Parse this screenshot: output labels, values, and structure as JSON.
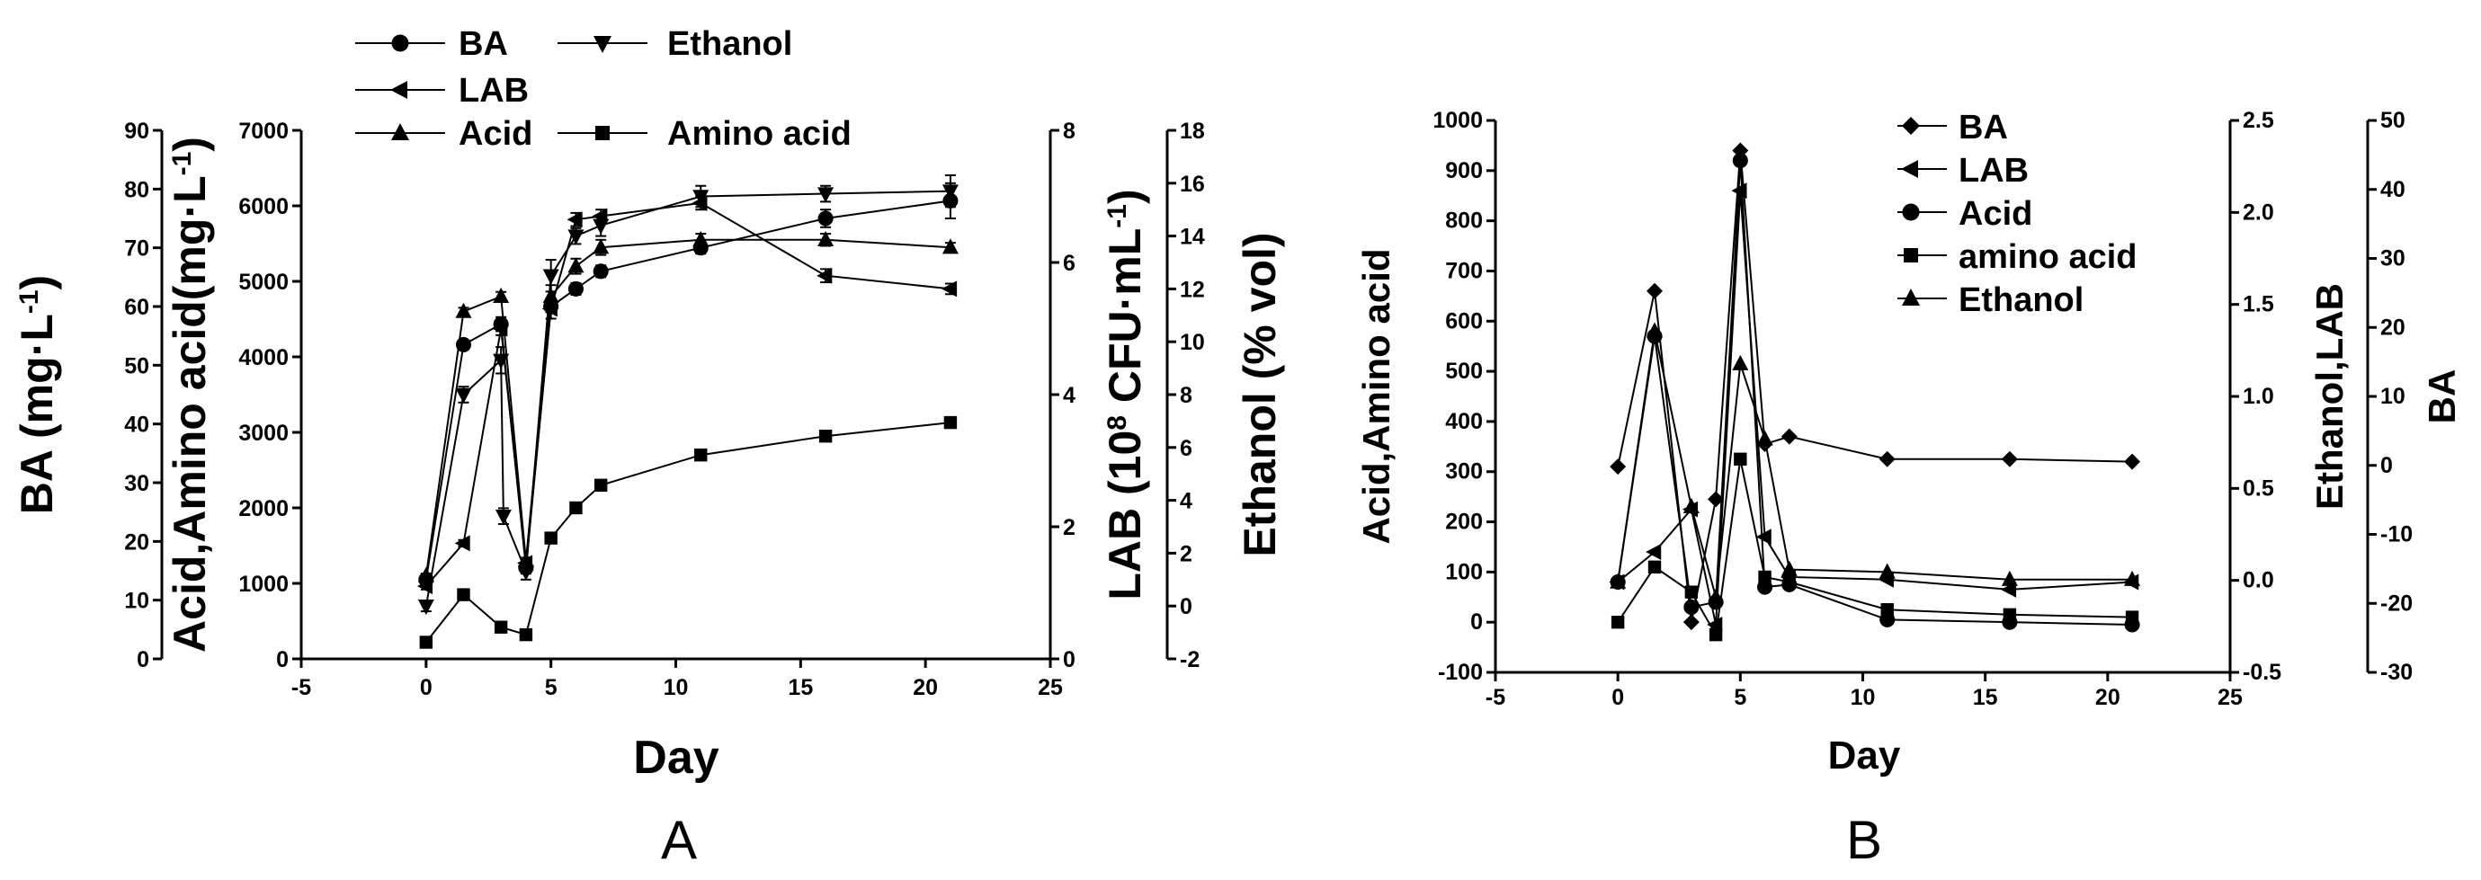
{
  "chart_data": [
    {
      "type": "line",
      "panel_label": "A",
      "xlabel": "Day",
      "x_ticks": [
        "-5",
        "0",
        "5",
        "10",
        "15",
        "20",
        "25"
      ],
      "xlim": [
        -5,
        25
      ],
      "axes": [
        {
          "id": "ba",
          "label": "BA (mg·L",
          "label_sup": "-1",
          "label_end": ")",
          "ylim": [
            0,
            90
          ],
          "ticks": [
            "0",
            "10",
            "20",
            "30",
            "40",
            "50",
            "60",
            "70",
            "80",
            "90"
          ]
        },
        {
          "id": "acid",
          "label": "Acid,Amino acid(mg·L",
          "label_sup": "-1",
          "label_end": ")",
          "ylim": [
            0,
            7000
          ],
          "ticks": [
            "0",
            "1000",
            "2000",
            "3000",
            "4000",
            "5000",
            "6000",
            "7000"
          ]
        },
        {
          "id": "lab",
          "label": "LAB (10",
          "label_sup": "8",
          "label_mid": " CFU·mL",
          "label_sup2": "-1",
          "label_end": ")",
          "ylim": [
            0,
            8
          ],
          "ticks": [
            "0",
            "2",
            "4",
            "6",
            "8"
          ]
        },
        {
          "id": "eth",
          "label": "Ethanol (% vol)",
          "ylim": [
            -2,
            18
          ],
          "ticks": [
            "-2",
            "0",
            "2",
            "4",
            "6",
            "8",
            "10",
            "12",
            "14",
            "16",
            "18"
          ]
        }
      ],
      "legend": {
        "placement": "top",
        "entries": [
          {
            "name": "BA",
            "marker": "circle"
          },
          {
            "name": "Ethanol",
            "marker": "triangle-down"
          },
          {
            "name": "LAB",
            "marker": "triangle-left"
          },
          {
            "name": "Acid",
            "marker": "triangle-up"
          },
          {
            "name": "Amino acid",
            "marker": "square"
          }
        ]
      },
      "series": [
        {
          "name": "BA",
          "axis": "ba",
          "marker": "circle",
          "x": [
            0,
            1.5,
            3,
            4,
            5,
            6,
            7,
            11,
            16,
            21
          ],
          "y": [
            13.5,
            53.5,
            57,
            15.5,
            60,
            63,
            66,
            70,
            75,
            78
          ],
          "err": [
            0.5,
            0.8,
            1.2,
            1,
            1,
            1,
            1,
            1,
            1.5,
            3
          ]
        },
        {
          "name": "Ethanol",
          "axis": "eth",
          "marker": "triangle-down",
          "x": [
            0,
            1.5,
            3,
            3.1,
            4,
            5,
            6,
            7,
            11,
            16,
            21
          ],
          "y": [
            0,
            8,
            9.3,
            3.4,
            1.3,
            12.5,
            14,
            14.4,
            15.5,
            15.6,
            15.7
          ],
          "err": [
            0.2,
            0.3,
            0.5,
            0.3,
            0.3,
            0.6,
            0.3,
            0.4,
            0.4,
            0.3,
            0.6
          ]
        },
        {
          "name": "LAB",
          "axis": "lab",
          "marker": "triangle-left",
          "x": [
            0,
            1.5,
            3,
            4,
            5,
            6,
            7,
            11,
            16,
            21
          ],
          "y": [
            1.1,
            1.75,
            5.0,
            1.45,
            5.3,
            6.65,
            6.7,
            6.9,
            5.8,
            5.6
          ],
          "err": [
            0.05,
            0.05,
            0.1,
            0.05,
            0.15,
            0.1,
            0.1,
            0.1,
            0.1,
            0.08
          ]
        },
        {
          "name": "Acid",
          "axis": "acid",
          "marker": "triangle-up",
          "x": [
            0,
            1.5,
            3,
            4,
            5,
            6,
            7,
            11,
            16,
            21
          ],
          "y": [
            1100,
            4600,
            4800,
            1300,
            4800,
            5200,
            5450,
            5550,
            5550,
            5450
          ],
          "err": [
            30,
            50,
            60,
            40,
            150,
            100,
            100,
            80,
            80,
            60
          ]
        },
        {
          "name": "Amino acid",
          "axis": "acid",
          "marker": "square",
          "x": [
            0,
            1.5,
            3,
            4,
            5,
            6,
            7,
            11,
            16,
            21
          ],
          "y": [
            220,
            850,
            420,
            320,
            1600,
            2000,
            2300,
            2700,
            2950,
            3130
          ],
          "err": [
            0,
            0,
            0,
            0,
            0,
            0,
            0,
            0,
            0,
            0
          ]
        }
      ]
    },
    {
      "type": "line",
      "panel_label": "B",
      "xlabel": "Day",
      "x_ticks": [
        "-5",
        "0",
        "5",
        "10",
        "15",
        "20",
        "25"
      ],
      "xlim": [
        -5,
        25
      ],
      "axes": [
        {
          "id": "acid",
          "label": "Acid,Amino acid",
          "ylim": [
            -100,
            1000
          ],
          "ticks": [
            "-100",
            "0",
            "100",
            "200",
            "300",
            "400",
            "500",
            "600",
            "700",
            "800",
            "900",
            "1000"
          ]
        },
        {
          "id": "ethlab",
          "label": "Ethanol,LAB",
          "ylim": [
            -0.5,
            2.5
          ],
          "ticks": [
            "-0.5",
            "0.0",
            "0.5",
            "1.0",
            "1.5",
            "2.0",
            "2.5"
          ]
        },
        {
          "id": "ba",
          "label": "BA",
          "ylim": [
            -30,
            50
          ],
          "ticks": [
            "-30",
            "-20",
            "-10",
            "0",
            "10",
            "20",
            "30",
            "40",
            "50"
          ]
        }
      ],
      "legend": {
        "placement": "top-right",
        "entries": [
          {
            "name": "BA",
            "marker": "diamond"
          },
          {
            "name": "LAB",
            "marker": "triangle-left"
          },
          {
            "name": "Acid",
            "marker": "circle"
          },
          {
            "name": "amino acid",
            "marker": "square"
          },
          {
            "name": "Ethanol",
            "marker": "triangle-up"
          }
        ]
      },
      "series": [
        {
          "name": "BA",
          "axis": "acid",
          "marker": "diamond",
          "x": [
            0,
            1.5,
            3,
            4,
            5,
            6,
            7,
            11,
            16,
            21
          ],
          "y": [
            310,
            660,
            0,
            245,
            940,
            355,
            370,
            325,
            325,
            320
          ],
          "err": [
            0,
            0,
            0,
            0,
            0,
            0,
            0,
            0,
            0,
            0
          ]
        },
        {
          "name": "LAB",
          "axis": "acid",
          "marker": "triangle-left",
          "x": [
            0,
            1.5,
            3,
            4,
            5,
            6,
            7,
            11,
            16,
            21
          ],
          "y": [
            80,
            140,
            225,
            -5,
            860,
            170,
            90,
            85,
            65,
            80
          ],
          "err": [
            0,
            0,
            0,
            0,
            0,
            0,
            0,
            0,
            0,
            0
          ]
        },
        {
          "name": "Acid",
          "axis": "acid",
          "marker": "circle",
          "x": [
            0,
            1.5,
            3,
            4,
            5,
            6,
            7,
            11,
            16,
            21
          ],
          "y": [
            80,
            570,
            30,
            40,
            920,
            70,
            75,
            5,
            0,
            -5
          ],
          "err": [
            0,
            0,
            0,
            0,
            0,
            0,
            0,
            0,
            0,
            0
          ]
        },
        {
          "name": "amino acid",
          "axis": "acid",
          "marker": "square",
          "x": [
            0,
            1.5,
            3,
            4,
            5,
            6,
            7,
            11,
            16,
            21
          ],
          "y": [
            0,
            110,
            60,
            -25,
            325,
            90,
            80,
            25,
            15,
            10
          ],
          "err": [
            0,
            0,
            0,
            0,
            0,
            0,
            0,
            0,
            0,
            0
          ]
        },
        {
          "name": "Ethanol",
          "axis": "acid",
          "marker": "triangle-up",
          "x": [
            0,
            1.5,
            3,
            4,
            5,
            6,
            7,
            11,
            16,
            21
          ],
          "y": [
            80,
            580,
            230,
            50,
            515,
            365,
            105,
            100,
            85,
            85
          ],
          "err": [
            0,
            0,
            0,
            0,
            0,
            0,
            0,
            0,
            0,
            0
          ]
        }
      ]
    }
  ]
}
